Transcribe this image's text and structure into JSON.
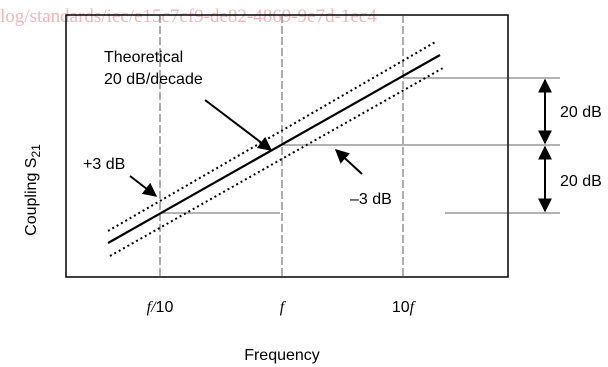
{
  "watermark": "log/standards/iec/e15c7cf9-de82-4869-9e7d-1ec4",
  "labels": {
    "theoretical": [
      "Theoretical",
      "20 dB/decade"
    ],
    "plus": "+3 dB",
    "minus": "–3 dB",
    "step_upper": "20 dB",
    "step_lower": "20 dB"
  },
  "axes": {
    "y_label": "Coupling S",
    "y_label_sub": "21",
    "x_ticks": [
      [
        "f/",
        "10"
      ],
      [
        "f"
      ],
      [
        "10",
        "f"
      ]
    ],
    "x_label": "Frequency"
  }
}
